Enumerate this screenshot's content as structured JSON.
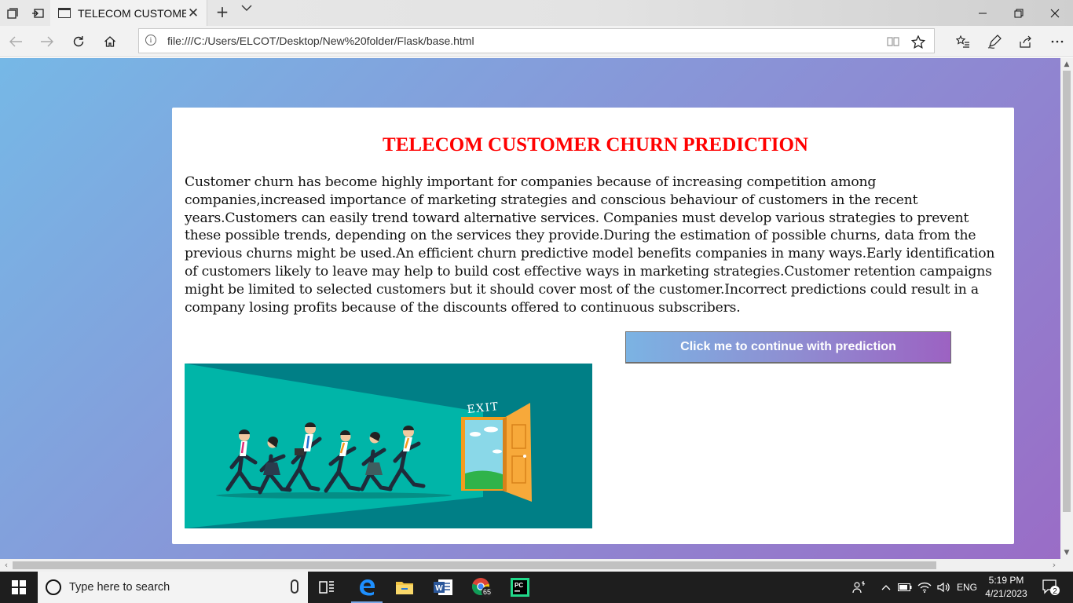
{
  "browser": {
    "tab": {
      "title": "TELECOM CUSTOMER CHURN PREDICTION"
    },
    "url": "file:///C:/Users/ELCOT/Desktop/New%20folder/Flask/base.html"
  },
  "page": {
    "title": "TELECOM CUSTOMER CHURN PREDICTION",
    "description": "Customer churn has become highly important for companies because of increasing competition among companies,increased importance of marketing strategies and conscious behaviour of customers in the recent years.Customers can easily trend toward alternative services. Companies must develop various strategies to prevent these possible trends, depending on the services they provide.During the estimation of possible churns, data from the previous churns might be used.An efficient churn predictive model benefits companies in many ways.Early identification of customers likely to leave may help to build cost effective ways in marketing strategies.Customer retention campaigns might be limited to selected customers but it should cover most of the customer.Incorrect predictions could result in a company losing profits because of the discounts offered to continuous subscribers.",
    "button_label": "Click me to continue with prediction",
    "illustration": {
      "door_sign": "EXIT"
    },
    "colors": {
      "title": "#ff0000",
      "gradient_start": "#76b8e6",
      "gradient_end": "#9a6cc6"
    }
  },
  "taskbar": {
    "search_placeholder": "Type here to search",
    "chrome_badge": "65",
    "language": "ENG",
    "time": "5:19 PM",
    "date": "4/21/2023",
    "notification_count": "2",
    "apps": [
      "task-view-icon",
      "edge-icon",
      "file-explorer-icon",
      "word-icon",
      "chrome-icon",
      "pycharm-icon"
    ]
  }
}
